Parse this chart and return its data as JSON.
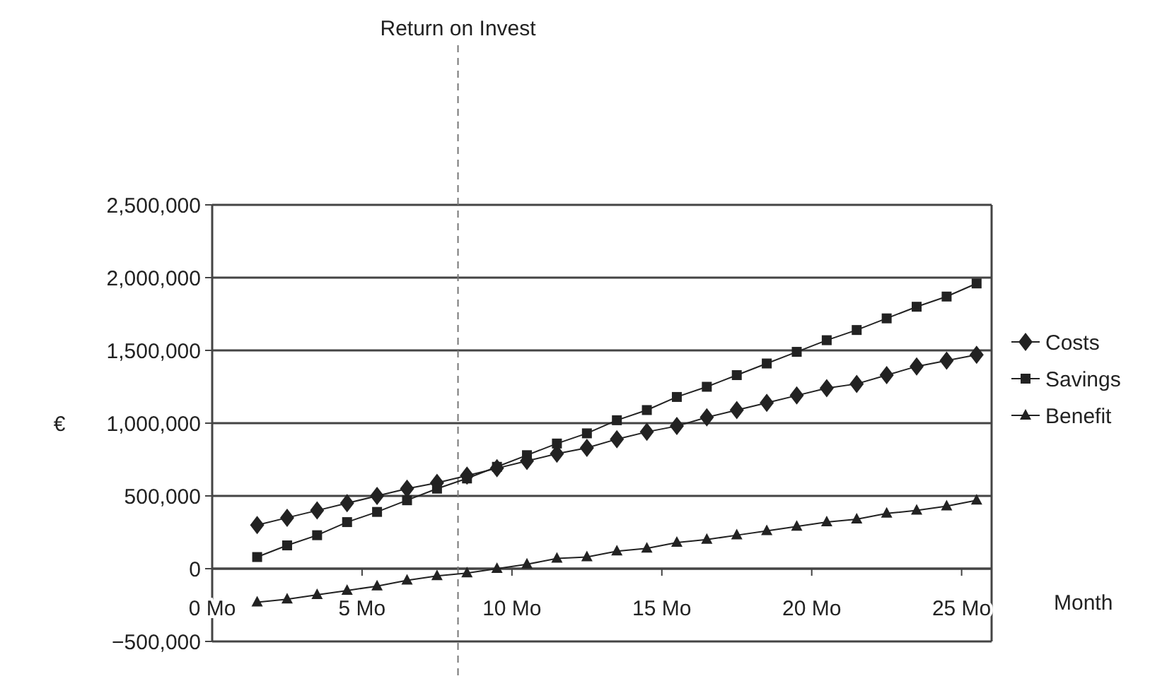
{
  "chart_data": {
    "type": "line",
    "xlabel": "Month",
    "ylabel": "€",
    "x": [
      1.5,
      2.5,
      3.5,
      4.5,
      5.5,
      6.5,
      7.5,
      8.5,
      9.5,
      10.5,
      11.5,
      12.5,
      13.5,
      14.5,
      15.5,
      16.5,
      17.5,
      18.5,
      19.5,
      20.5,
      21.5,
      22.5,
      23.5,
      24.5,
      25.5
    ],
    "series": [
      {
        "name": "Costs",
        "color": "#222222",
        "marker": "diamond",
        "values": [
          300000,
          350000,
          400000,
          450000,
          500000,
          550000,
          590000,
          640000,
          690000,
          740000,
          790000,
          830000,
          890000,
          940000,
          980000,
          1040000,
          1090000,
          1140000,
          1190000,
          1240000,
          1270000,
          1330000,
          1390000,
          1430000,
          1470000
        ]
      },
      {
        "name": "Savings",
        "color": "#222222",
        "marker": "square",
        "values": [
          80000,
          160000,
          230000,
          320000,
          390000,
          470000,
          550000,
          620000,
          700000,
          780000,
          860000,
          930000,
          1020000,
          1090000,
          1180000,
          1250000,
          1330000,
          1410000,
          1490000,
          1570000,
          1640000,
          1720000,
          1800000,
          1870000,
          1960000
        ]
      },
      {
        "name": "Benefit",
        "color": "#222222",
        "marker": "triangle",
        "values": [
          -230000,
          -210000,
          -180000,
          -150000,
          -120000,
          -80000,
          -50000,
          -30000,
          0,
          30000,
          70000,
          80000,
          120000,
          140000,
          180000,
          200000,
          230000,
          260000,
          290000,
          320000,
          340000,
          380000,
          400000,
          430000,
          470000
        ]
      }
    ],
    "xlim": [
      0,
      26
    ],
    "xticks": [
      {
        "value": 0,
        "label": "0 Mo"
      },
      {
        "value": 5,
        "label": "5 Mo"
      },
      {
        "value": 10,
        "label": "10 Mo"
      },
      {
        "value": 15,
        "label": "15 Mo"
      },
      {
        "value": 20,
        "label": "20 Mo"
      },
      {
        "value": 25,
        "label": "25 Mo"
      }
    ],
    "ylim": [
      -500000,
      2500000
    ],
    "yticks": [
      {
        "value": -500000,
        "label": "−500,000"
      },
      {
        "value": 0,
        "label": "0"
      },
      {
        "value": 500000,
        "label": "500,000"
      },
      {
        "value": 1000000,
        "label": "1,000,000"
      },
      {
        "value": 1500000,
        "label": "1,500,000"
      },
      {
        "value": 2000000,
        "label": "2,000,000"
      },
      {
        "value": 2500000,
        "label": "2,500,000"
      }
    ],
    "ref_lines": [
      {
        "axis": "x",
        "value": 8.2,
        "label": "Return on Invest",
        "color": "#777777",
        "line_style": "dashed"
      }
    ],
    "grid": "y",
    "legend": "right",
    "line_style": "solid"
  }
}
